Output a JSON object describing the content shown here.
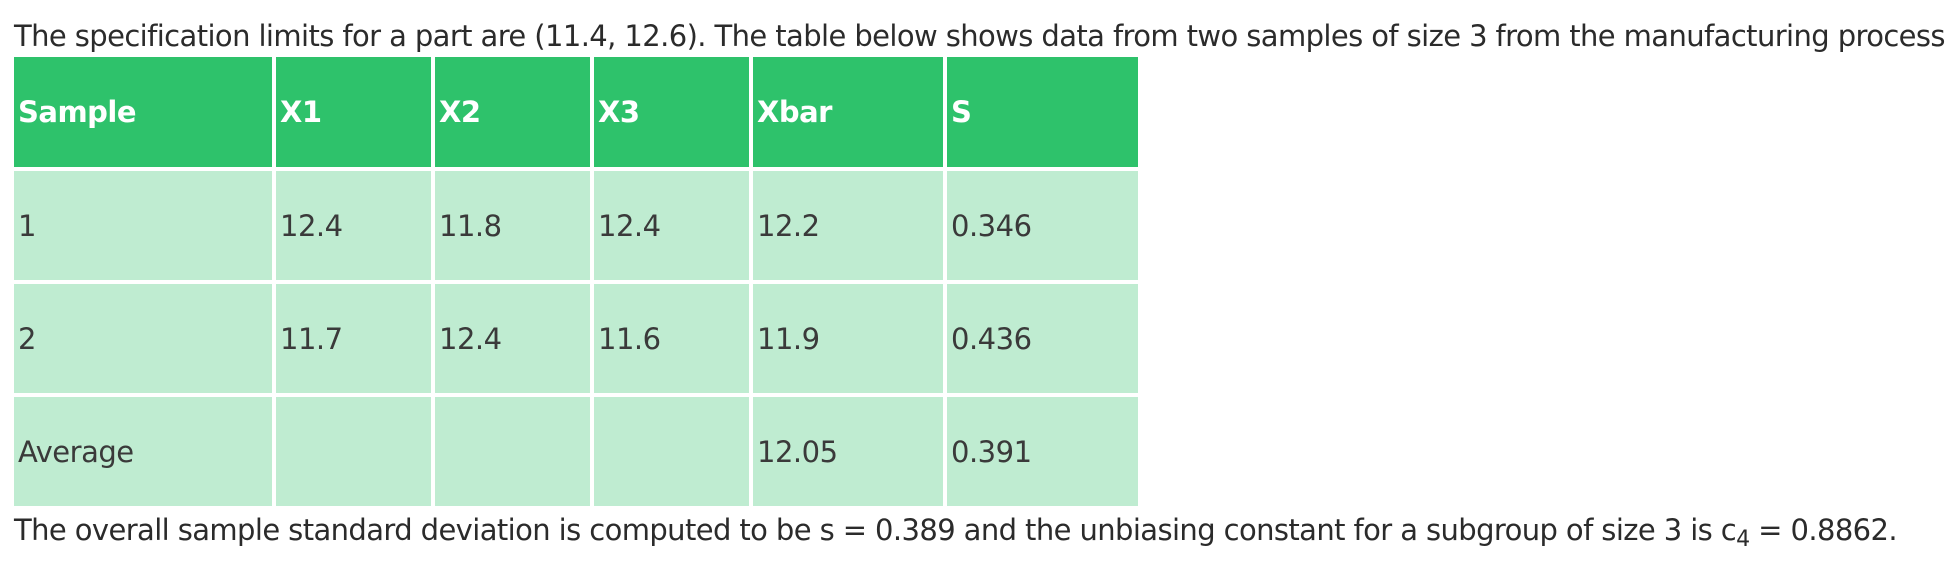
{
  "intro_text": "The specification limits for a part are (11.4, 12.6). The table below shows data from two samples of size 3 from the manufacturing process",
  "table": {
    "headers": [
      "Sample",
      "X1",
      "X2",
      "X3",
      "Xbar",
      "S"
    ],
    "rows": [
      [
        "1",
        "12.4",
        "11.8",
        "12.4",
        "12.2",
        "0.346"
      ],
      [
        "2",
        "11.7",
        "12.4",
        "11.6",
        "11.9",
        "0.436"
      ],
      [
        "Average",
        "",
        "",
        "",
        "12.05",
        "0.391"
      ]
    ]
  },
  "outro": {
    "text_before": "The overall sample standard deviation is computed to be s = 0.389 and the unbiasing constant for a subgroup of size 3 is c",
    "subscript": "4",
    "text_after": " = 0.8862."
  },
  "colors": {
    "header_bg": "#2ec26b",
    "cell_bg": "#bfecd1"
  }
}
